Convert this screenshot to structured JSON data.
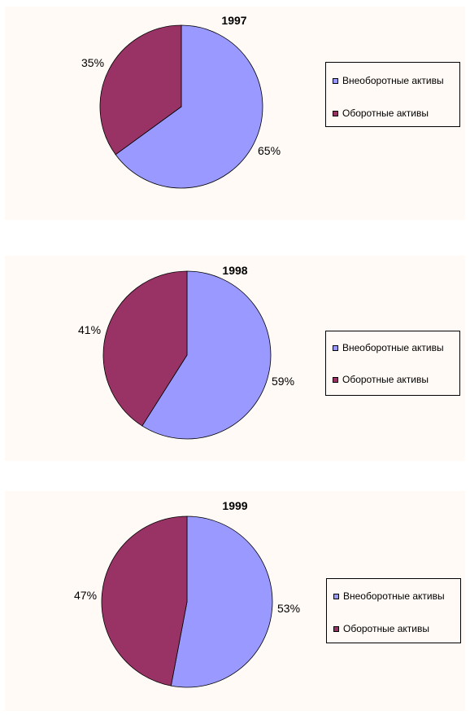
{
  "chart_data": [
    {
      "type": "pie",
      "title": "1997",
      "series": [
        {
          "name": "Внеоборотные активы",
          "value": 65,
          "label": "65%",
          "color": "#9999ff"
        },
        {
          "name": "Оборотные активы",
          "value": 35,
          "label": "35%",
          "color": "#993366"
        }
      ],
      "legend": "right"
    },
    {
      "type": "pie",
      "title": "1998",
      "series": [
        {
          "name": "Внеоборотные активы",
          "value": 59,
          "label": "59%",
          "color": "#9999ff"
        },
        {
          "name": "Оборотные активы",
          "value": 41,
          "label": "41%",
          "color": "#993366"
        }
      ],
      "legend": "right"
    },
    {
      "type": "pie",
      "title": "1999",
      "series": [
        {
          "name": "Внеоборотные активы",
          "value": 53,
          "label": "53%",
          "color": "#9999ff"
        },
        {
          "name": "Оборотные активы",
          "value": 47,
          "label": "47%",
          "color": "#993366"
        }
      ],
      "legend": "right"
    }
  ]
}
